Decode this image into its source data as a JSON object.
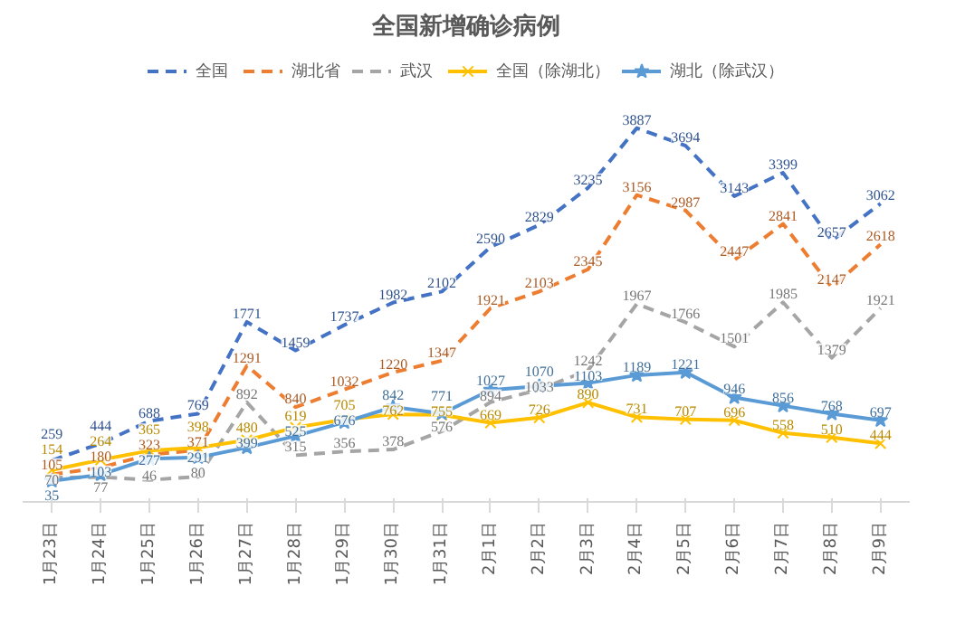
{
  "chart_data": {
    "type": "line",
    "title": "全国新增确诊病例",
    "categories": [
      "1月23日",
      "1月24日",
      "1月25日",
      "1月26日",
      "1月27日",
      "1月28日",
      "1月29日",
      "1月30日",
      "1月31日",
      "2月1日",
      "2月2日",
      "2月3日",
      "2月4日",
      "2月5日",
      "2月6日",
      "2月7日",
      "2月8日",
      "2月9日"
    ],
    "series": [
      {
        "name": "全国",
        "color": "#4472c4",
        "line_style": "dashed",
        "marker": "none",
        "values": [
          259,
          444,
          688,
          769,
          1771,
          1459,
          1737,
          1982,
          2102,
          2590,
          2829,
          3235,
          3887,
          3694,
          3143,
          3399,
          2657,
          3062
        ]
      },
      {
        "name": "湖北省",
        "color": "#ed7d31",
        "line_style": "dashed",
        "marker": "none",
        "values": [
          105,
          180,
          323,
          371,
          1291,
          840,
          1032,
          1220,
          1347,
          1921,
          2103,
          2345,
          3156,
          2987,
          2447,
          2841,
          2147,
          2618
        ]
      },
      {
        "name": "武汉",
        "color": "#a5a5a5",
        "line_style": "dashed",
        "marker": "none",
        "values": [
          70,
          77,
          46,
          80,
          892,
          315,
          356,
          378,
          576,
          894,
          1033,
          1242,
          1967,
          1766,
          1501,
          1985,
          1379,
          1921
        ]
      },
      {
        "name": "全国（除湖北）",
        "color": "#ffc000",
        "line_style": "solid",
        "marker": "cross",
        "values": [
          154,
          264,
          365,
          398,
          480,
          619,
          705,
          762,
          755,
          669,
          726,
          890,
          731,
          707,
          696,
          558,
          510,
          444
        ]
      },
      {
        "name": "湖北（除武汉）",
        "color": "#5b9bd5",
        "line_style": "solid",
        "marker": "star",
        "values": [
          35,
          103,
          277,
          291,
          399,
          525,
          676,
          842,
          771,
          1027,
          1070,
          1103,
          1189,
          1221,
          946,
          856,
          768,
          697
        ]
      }
    ],
    "data_labels": true,
    "legend": "top",
    "grid": false
  }
}
